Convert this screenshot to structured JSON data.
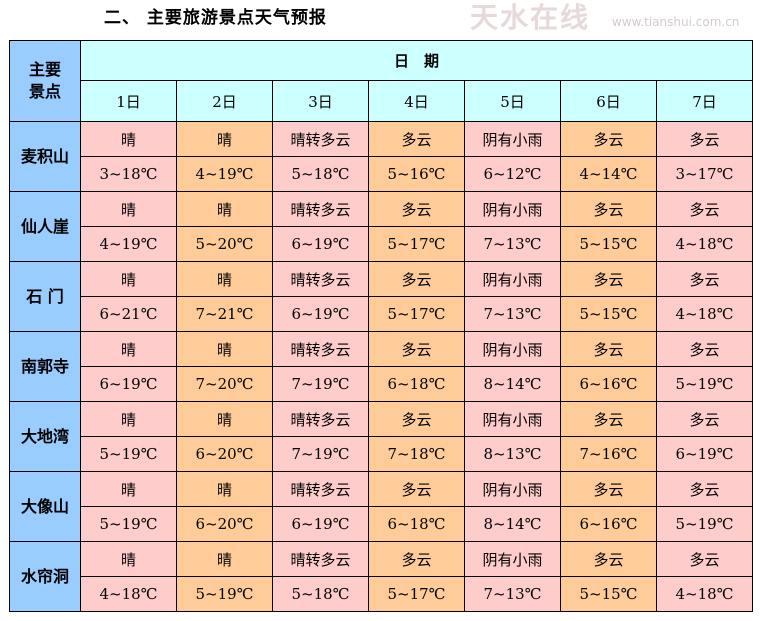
{
  "title": "二、 主要旅游景点天气预报",
  "header": {
    "corner": "主要\n景点",
    "date_label": "日　期",
    "days": [
      "1日",
      "2日",
      "3日",
      "4日",
      "5日",
      "6日",
      "7日"
    ]
  },
  "colors": {
    "name_col": "#99CCFF",
    "header": "#CCFFFF",
    "odd_day": "#FFCCCC",
    "even_day": "#FFCC99"
  },
  "spots": [
    {
      "name": "麦积山",
      "weather": [
        "晴",
        "晴",
        "晴转多云",
        "多云",
        "阴有小雨",
        "多云",
        "多云"
      ],
      "temp": [
        "3~18℃",
        "4~19℃",
        "5~18℃",
        "5~16℃",
        "6~12℃",
        "4~14℃",
        "3~17℃"
      ]
    },
    {
      "name": "仙人崖",
      "weather": [
        "晴",
        "晴",
        "晴转多云",
        "多云",
        "阴有小雨",
        "多云",
        "多云"
      ],
      "temp": [
        "4~19℃",
        "5~20℃",
        "6~19℃",
        "5~17℃",
        "7~13℃",
        "5~15℃",
        "4~18℃"
      ]
    },
    {
      "name": "石 门",
      "weather": [
        "晴",
        "晴",
        "晴转多云",
        "多云",
        "阴有小雨",
        "多云",
        "多云"
      ],
      "temp": [
        "6~21℃",
        "7~21℃",
        "6~19℃",
        "5~17℃",
        "7~13℃",
        "5~15℃",
        "4~18℃"
      ]
    },
    {
      "name": "南郭寺",
      "weather": [
        "晴",
        "晴",
        "晴转多云",
        "多云",
        "阴有小雨",
        "多云",
        "多云"
      ],
      "temp": [
        "6~19℃",
        "7~20℃",
        "7~19℃",
        "6~18℃",
        "8~14℃",
        "6~16℃",
        "5~19℃"
      ]
    },
    {
      "name": "大地湾",
      "weather": [
        "晴",
        "晴",
        "晴转多云",
        "多云",
        "阴有小雨",
        "多云",
        "多云"
      ],
      "temp": [
        "5~19℃",
        "6~20℃",
        "7~19℃",
        "7~18℃",
        "8~13℃",
        "7~16℃",
        "6~19℃"
      ]
    },
    {
      "name": "大像山",
      "weather": [
        "晴",
        "晴",
        "晴转多云",
        "多云",
        "阴有小雨",
        "多云",
        "多云"
      ],
      "temp": [
        "5~19℃",
        "6~20℃",
        "6~19℃",
        "6~18℃",
        "8~14℃",
        "6~16℃",
        "5~19℃"
      ]
    },
    {
      "name": "水帘洞",
      "weather": [
        "晴",
        "晴",
        "晴转多云",
        "多云",
        "阴有小雨",
        "多云",
        "多云"
      ],
      "temp": [
        "4~18℃",
        "5~19℃",
        "5~18℃",
        "5~17℃",
        "7~13℃",
        "5~15℃",
        "4~18℃"
      ]
    }
  ],
  "watermark": {
    "logo": "天水在线",
    "url": "www.tianshui.com.cn"
  }
}
